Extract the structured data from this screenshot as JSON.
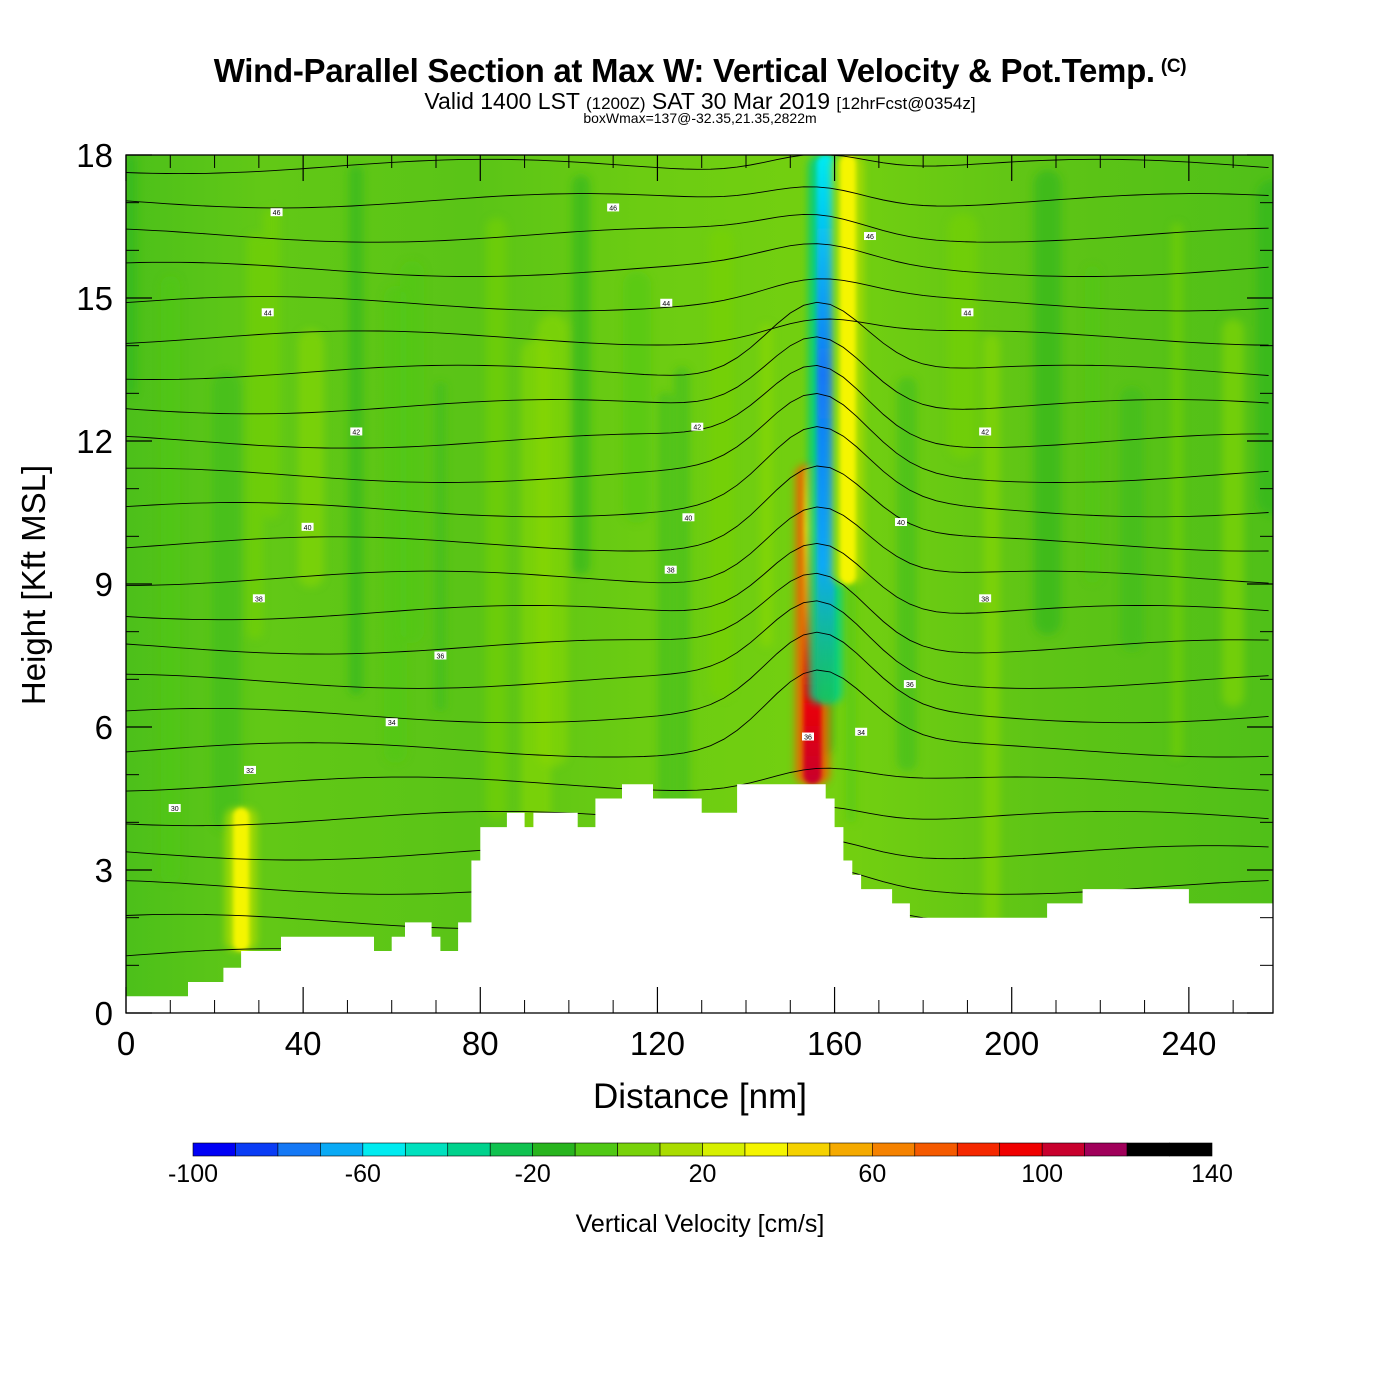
{
  "header": {
    "title": "Wind-Parallel Section at Max W: Vertical Velocity & Pot.Temp.",
    "copyright_mark": "(C)",
    "valid_prefix": "Valid 1400 LST",
    "valid_utc": "(1200Z)",
    "valid_date": "SAT 30 Mar 2019",
    "forecast_info": "[12hrFcst@0354z]",
    "box_info": "boxWmax=137@-32.35,21.35,2822m"
  },
  "chart_data": {
    "type": "heatmap",
    "title": "Wind-Parallel Section at Max W: Vertical Velocity & Pot.Temp.",
    "xlabel": "Distance [nm]",
    "ylabel": "Height [Kft MSL]",
    "xlim": [
      0,
      259
    ],
    "ylim": [
      0,
      18
    ],
    "xticks": [
      0,
      40,
      80,
      120,
      160,
      200,
      240
    ],
    "yticks": [
      0,
      3,
      6,
      9,
      12,
      15,
      18
    ],
    "colorbar": {
      "label": "Vertical Velocity [cm/s]",
      "min": -100,
      "max": 140,
      "step": 10,
      "tick_values": [
        -100,
        -60,
        -20,
        20,
        60,
        100,
        140
      ],
      "colors": [
        "#0000f5",
        "#0a3cf5",
        "#1478f5",
        "#0aaaf5",
        "#00ebf0",
        "#00e1be",
        "#00d28c",
        "#10c250",
        "#28b41e",
        "#50c814",
        "#78d20a",
        "#aadc00",
        "#d7f000",
        "#f5f500",
        "#f5d200",
        "#f5aa00",
        "#f58200",
        "#f55a00",
        "#f52800",
        "#f00000",
        "#c8002d",
        "#a0005a"
      ]
    },
    "terrain_profile": [
      [
        0,
        0.35
      ],
      [
        14,
        0.35
      ],
      [
        14,
        0.65
      ],
      [
        22,
        0.65
      ],
      [
        22,
        0.95
      ],
      [
        26,
        0.95
      ],
      [
        26,
        1.3
      ],
      [
        35,
        1.3
      ],
      [
        35,
        1.6
      ],
      [
        56,
        1.6
      ],
      [
        56,
        1.3
      ],
      [
        60,
        1.3
      ],
      [
        60,
        1.6
      ],
      [
        63,
        1.6
      ],
      [
        63,
        1.9
      ],
      [
        69,
        1.9
      ],
      [
        69,
        1.6
      ],
      [
        71,
        1.6
      ],
      [
        71,
        1.3
      ],
      [
        75,
        1.3
      ],
      [
        75,
        1.9
      ],
      [
        78,
        1.9
      ],
      [
        78,
        3.2
      ],
      [
        80,
        3.2
      ],
      [
        80,
        3.9
      ],
      [
        86,
        3.9
      ],
      [
        86,
        4.2
      ],
      [
        90,
        4.2
      ],
      [
        90,
        3.9
      ],
      [
        92,
        3.9
      ],
      [
        92,
        4.2
      ],
      [
        102,
        4.2
      ],
      [
        102,
        3.9
      ],
      [
        106,
        3.9
      ],
      [
        106,
        4.5
      ],
      [
        112,
        4.5
      ],
      [
        112,
        4.8
      ],
      [
        119,
        4.8
      ],
      [
        119,
        4.5
      ],
      [
        130,
        4.5
      ],
      [
        130,
        4.2
      ],
      [
        138,
        4.2
      ],
      [
        138,
        4.8
      ],
      [
        158,
        4.8
      ],
      [
        158,
        4.5
      ],
      [
        160,
        4.5
      ],
      [
        160,
        3.9
      ],
      [
        162,
        3.9
      ],
      [
        162,
        3.2
      ],
      [
        164,
        3.2
      ],
      [
        164,
        2.9
      ],
      [
        166,
        2.9
      ],
      [
        166,
        2.6
      ],
      [
        173,
        2.6
      ],
      [
        173,
        2.3
      ],
      [
        177,
        2.3
      ],
      [
        177,
        2.0
      ],
      [
        208,
        2.0
      ],
      [
        208,
        2.3
      ],
      [
        216,
        2.3
      ],
      [
        216,
        2.6
      ],
      [
        240,
        2.6
      ],
      [
        240,
        2.3
      ],
      [
        259,
        2.3
      ]
    ],
    "w_max_cm_s": 137,
    "w_features": [
      {
        "x": 155,
        "y_from": 4.8,
        "y_to": 11.5,
        "w": 137,
        "description": "updraft core"
      },
      {
        "x": 158,
        "y_from": 6.5,
        "y_to": 18,
        "w": -70,
        "description": "downdraft"
      },
      {
        "x": 163,
        "y_from": 9,
        "y_to": 18,
        "w": 35,
        "description": "updraft aloft"
      },
      {
        "x": 26,
        "y_from": 1.3,
        "y_to": 4.3,
        "w": 30,
        "description": "low-level updraft"
      }
    ],
    "theta_contour_labels": [
      {
        "value": "46",
        "x": 34,
        "y": 16.8
      },
      {
        "value": "46",
        "x": 110,
        "y": 16.9
      },
      {
        "value": "46",
        "x": 168,
        "y": 16.3
      },
      {
        "value": "44",
        "x": 32,
        "y": 14.7
      },
      {
        "value": "44",
        "x": 122,
        "y": 14.9
      },
      {
        "value": "44",
        "x": 190,
        "y": 14.7
      },
      {
        "value": "42",
        "x": 52,
        "y": 12.2
      },
      {
        "value": "42",
        "x": 129,
        "y": 12.3
      },
      {
        "value": "42",
        "x": 194,
        "y": 12.2
      },
      {
        "value": "40",
        "x": 41,
        "y": 10.2
      },
      {
        "value": "40",
        "x": 127,
        "y": 10.4
      },
      {
        "value": "40",
        "x": 175,
        "y": 10.3
      },
      {
        "value": "38",
        "x": 30,
        "y": 8.7
      },
      {
        "value": "38",
        "x": 123,
        "y": 9.3
      },
      {
        "value": "38",
        "x": 194,
        "y": 8.7
      },
      {
        "value": "36",
        "x": 71,
        "y": 7.5
      },
      {
        "value": "36",
        "x": 177,
        "y": 6.9
      },
      {
        "value": "36",
        "x": 154,
        "y": 5.8
      },
      {
        "value": "34",
        "x": 60,
        "y": 6.1
      },
      {
        "value": "34",
        "x": 166,
        "y": 5.9
      },
      {
        "value": "32",
        "x": 28,
        "y": 5.1
      },
      {
        "value": "30",
        "x": 11,
        "y": 4.3
      }
    ]
  }
}
